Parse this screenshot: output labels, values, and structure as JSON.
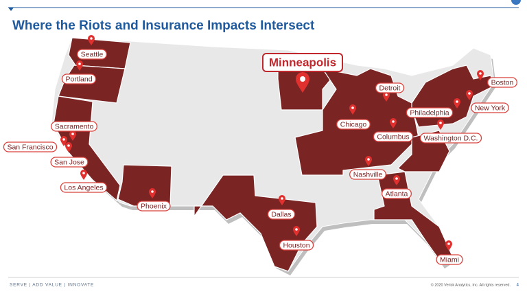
{
  "header": {
    "title": "Where the Riots and Insurance Impacts Intersect"
  },
  "map": {
    "featured_city": "Minneapolis",
    "cities": [
      "Seattle",
      "Portland",
      "Sacramento",
      "San Francisco",
      "San Jose",
      "Los Angeles",
      "Phoenix",
      "Dallas",
      "Houston",
      "Chicago",
      "Detroit",
      "Columbus",
      "Nashville",
      "Atlanta",
      "Miami",
      "Philadelphia",
      "Washington D.C.",
      "New York",
      "Boston"
    ]
  },
  "footer": {
    "tagline": "SERVE | ADD VALUE | INNOVATE",
    "copyright": "© 2020 Verisk Analytics, Inc. All rights reserved.",
    "page_number": "4"
  }
}
